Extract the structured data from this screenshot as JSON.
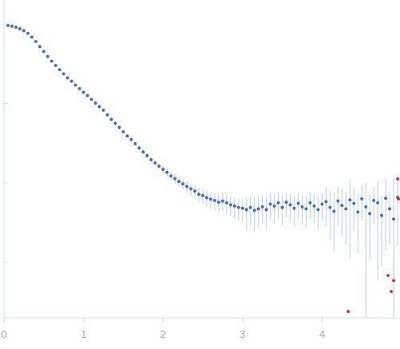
{
  "chart_data": {
    "type": "scatter",
    "log": "y",
    "tick_labels": "x",
    "grid": false,
    "xlim": [
      0,
      4.98
    ],
    "xticks": [
      0,
      1,
      2,
      3,
      4
    ],
    "ylim": [
      0.0002,
      2
    ],
    "yticks": [
      0.001,
      0.01,
      0.1,
      1
    ],
    "series": [
      {
        "color": "#3a66b8",
        "marker": "circle",
        "x": [
          0.05,
          0.1,
          0.15,
          0.2,
          0.25,
          0.3,
          0.35,
          0.4,
          0.45,
          0.5,
          0.55,
          0.6,
          0.65,
          0.7,
          0.75,
          0.8,
          0.85,
          0.9,
          0.95,
          1.0,
          1.05,
          1.1,
          1.15,
          1.2,
          1.25,
          1.3,
          1.35,
          1.4,
          1.45,
          1.5,
          1.55,
          1.6,
          1.65,
          1.7,
          1.75,
          1.8,
          1.85,
          1.9,
          1.95,
          2.0,
          2.05,
          2.1,
          2.15,
          2.2,
          2.25,
          2.3,
          2.35,
          2.4,
          2.45,
          2.5,
          2.55,
          2.6,
          2.65,
          2.7,
          2.75,
          2.8,
          2.85,
          2.9,
          2.95,
          3.0,
          3.05,
          3.1,
          3.15,
          3.2,
          3.25,
          3.3,
          3.35,
          3.4,
          3.45,
          3.5,
          3.55,
          3.6,
          3.65,
          3.7,
          3.75,
          3.8,
          3.85,
          3.9,
          3.95,
          4.0,
          4.05,
          4.1,
          4.15,
          4.2,
          4.25,
          4.3,
          4.35,
          4.4,
          4.45,
          4.5,
          4.55,
          4.6,
          4.65,
          4.7,
          4.75,
          4.8,
          4.85,
          4.9,
          4.95
        ],
        "values": [
          0.955,
          0.94,
          0.91,
          0.87,
          0.82,
          0.76,
          0.68,
          0.6,
          0.52,
          0.45,
          0.39,
          0.34,
          0.3,
          0.265,
          0.235,
          0.21,
          0.19,
          0.17,
          0.153,
          0.138,
          0.125,
          0.112,
          0.101,
          0.091,
          0.082,
          0.072,
          0.063,
          0.056,
          0.05,
          0.044,
          0.039,
          0.035,
          0.031,
          0.0275,
          0.0245,
          0.022,
          0.0195,
          0.0178,
          0.0162,
          0.0148,
          0.0136,
          0.0122,
          0.0113,
          0.0104,
          0.0097,
          0.009,
          0.0084,
          0.0079,
          0.0072,
          0.0069,
          0.0065,
          0.0062,
          0.006,
          0.0057,
          0.0059,
          0.0056,
          0.0053,
          0.0051,
          0.0049,
          0.0048,
          0.0046,
          0.0049,
          0.0045,
          0.0047,
          0.005,
          0.0046,
          0.0054,
          0.0051,
          0.0056,
          0.0049,
          0.0057,
          0.0053,
          0.0048,
          0.0055,
          0.005,
          0.0047,
          0.0056,
          0.0051,
          0.0046,
          0.0054,
          0.0058,
          0.0049,
          0.0044,
          0.0059,
          0.0052,
          0.0047,
          0.0061,
          0.0055,
          0.0043,
          0.0063,
          0.005,
          0.0041,
          0.006,
          0.0056,
          0.0039,
          0.0064,
          0.0047,
          0.0035,
          0.0066
        ],
        "errors": [
          0.005,
          0.005,
          0.005,
          0.004,
          0.004,
          0.004,
          0.003,
          0.003,
          0.003,
          0.002,
          0.002,
          0.002,
          0.002,
          0.002,
          0.002,
          0.002,
          0.002,
          0.002,
          0.002,
          0.002,
          0.003,
          0.003,
          0.003,
          0.003,
          0.003,
          0.003,
          0.003,
          0.003,
          0.003,
          0.0015,
          0.0015,
          0.0015,
          0.0015,
          0.0015,
          0.0015,
          0.0015,
          0.0015,
          0.0015,
          0.0015,
          0.0015,
          0.0015,
          0.0015,
          0.0015,
          0.0015,
          0.0015,
          0.0015,
          0.0015,
          0.0015,
          0.0015,
          0.0015,
          0.0015,
          0.0015,
          0.0015,
          0.0015,
          0.0015,
          0.0015,
          0.0015,
          0.0015,
          0.0015,
          0.0015,
          0.002,
          0.002,
          0.002,
          0.002,
          0.002,
          0.002,
          0.002,
          0.002,
          0.002,
          0.002,
          0.002,
          0.002,
          0.002,
          0.002,
          0.002,
          0.002,
          0.002,
          0.002,
          0.002,
          0.002,
          0.003,
          0.003,
          0.003,
          0.003,
          0.003,
          0.003,
          0.005,
          0.003,
          0.003,
          0.003,
          0.005,
          0.003,
          0.003,
          0.005,
          0.003,
          0.005,
          0.003,
          0.008,
          0.005
        ]
      },
      {
        "color": "#e0201b",
        "marker": "circle",
        "x": [
          4.33,
          4.83,
          4.87,
          4.9,
          4.95,
          4.96
        ],
        "values": [
          0.00024,
          0.00068,
          0.00043,
          0.00059,
          0.0112,
          0.0063
        ]
      }
    ]
  }
}
